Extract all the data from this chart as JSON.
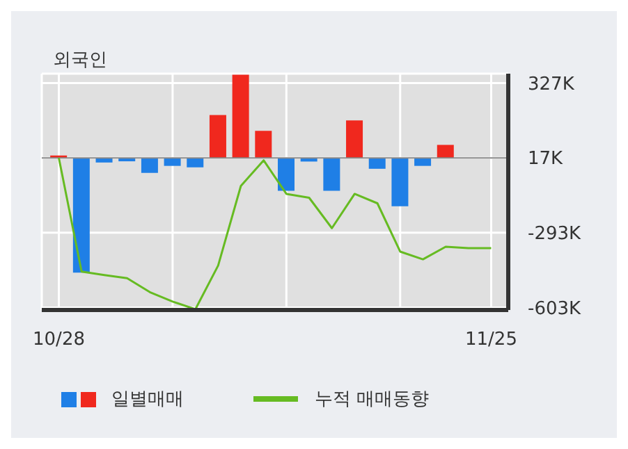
{
  "chart_data": {
    "type": "bar",
    "title": "외국인",
    "categories": [
      "10/28",
      null,
      null,
      null,
      null,
      null,
      null,
      null,
      null,
      null,
      null,
      null,
      null,
      null,
      null,
      null,
      null,
      null,
      null,
      "11/25"
    ],
    "series": [
      {
        "name": "일별매매",
        "colors": [
          "#f0281e",
          "#1f7fe6",
          "#1f7fe6",
          "#1f7fe6",
          "#1f7fe6",
          "#1f7fe6",
          "#1f7fe6",
          "#f0281e",
          "#f0281e",
          "#f0281e",
          "#1f7fe6",
          "#1f7fe6",
          "#1f7fe6",
          "#f0281e",
          "#1f7fe6",
          "#1f7fe6",
          "#1f7fe6",
          "#f0281e",
          "#1f7fe6",
          "#1f7fe6"
        ],
        "base": [
          17,
          17,
          17,
          17,
          17,
          17,
          17,
          17,
          17,
          17,
          17,
          17,
          17,
          17,
          17,
          17,
          17,
          17,
          null,
          null
        ],
        "values": [
          10,
          -475,
          -19,
          -14,
          -62,
          -33,
          -39,
          178,
          345,
          112,
          -136,
          -15,
          -136,
          155,
          -45,
          -200,
          -33,
          54,
          null,
          null
        ]
      },
      {
        "name": "누적 매매동향",
        "type": "line",
        "color": "#66bb22",
        "values": [
          17,
          -454,
          -468,
          -481,
          -539,
          -578,
          -610,
          -429,
          -99,
          7,
          -132,
          -148,
          -274,
          -132,
          -171,
          -371,
          -403,
          -351,
          -357,
          -357
        ]
      }
    ],
    "ylim": [
      -613,
      366
    ],
    "yticks": [
      {
        "value": 327,
        "label": "327K"
      },
      {
        "value": 17,
        "label": "17K"
      },
      {
        "value": -293,
        "label": "-293K"
      },
      {
        "value": -603,
        "label": "-603K"
      }
    ],
    "ref_lines": [
      {
        "axis": "y",
        "value": 17,
        "color": "#888888"
      }
    ],
    "grid": true,
    "legend": "bottom",
    "marker": "none"
  }
}
